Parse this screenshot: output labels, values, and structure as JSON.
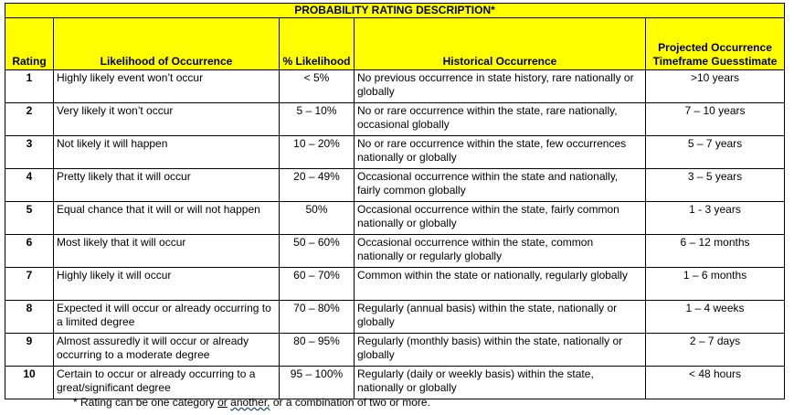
{
  "table": {
    "title": "PROBABILITY RATING DESCRIPTION*",
    "headers": [
      "Rating",
      "Likelihood of Occurrence",
      "% Likelihood",
      "Historical Occurrence",
      "Projected Occurrence Timeframe Guesstimate"
    ],
    "rows": [
      [
        "1",
        "Highly likely event won’t occur",
        "< 5%",
        "No previous occurrence in state history, rare nationally or globally",
        ">10 years"
      ],
      [
        "2",
        "Very likely it won’t occur",
        "5 – 10%",
        "No or rare occurrence within the state, rare nationally, occasional globally",
        "7 – 10 years"
      ],
      [
        "3",
        "Not likely it will happen",
        "10 – 20%",
        "No or rare occurrence within the state, few occurrences nationally or globally",
        "5 – 7 years"
      ],
      [
        "4",
        "Pretty likely that it will occur",
        "20 – 49%",
        "Occasional occurrence within the state and nationally, fairly common globally",
        "3 – 5 years"
      ],
      [
        "5",
        "Equal chance that it will or will not happen",
        "50%",
        "Occasional occurrence within the state, fairly common nationally or globally",
        "1 - 3 years"
      ],
      [
        "6",
        "Most likely that it will occur",
        "50 – 60%",
        "Occasional occurrence within the state, common nationally or regularly globally",
        "6 – 12 months"
      ],
      [
        "7",
        "Highly likely it will occur",
        "60 – 70%",
        "Common within the state or nationally, regularly globally",
        "1 – 6 months"
      ],
      [
        "8",
        "Expected it will occur or already occurring to a limited degree",
        "70 – 80%",
        "Regularly (annual basis) within the state, nationally or globally",
        "1 – 4 weeks"
      ],
      [
        "9",
        "Almost assuredly it will occur or already occurring to a moderate degree",
        "80 – 95%",
        "Regularly (monthly basis) within the state, nationally or globally",
        "2 – 7 days"
      ],
      [
        "10",
        "Certain to occur or already occurring to a great/significant degree",
        "95 – 100%",
        "Regularly (daily or weekly basis) within the state, nationally or globally",
        "< 48 hours"
      ]
    ]
  },
  "footnote": [
    "* Rating can be one category",
    "or",
    "another,",
    "or a combination of two or more."
  ]
}
